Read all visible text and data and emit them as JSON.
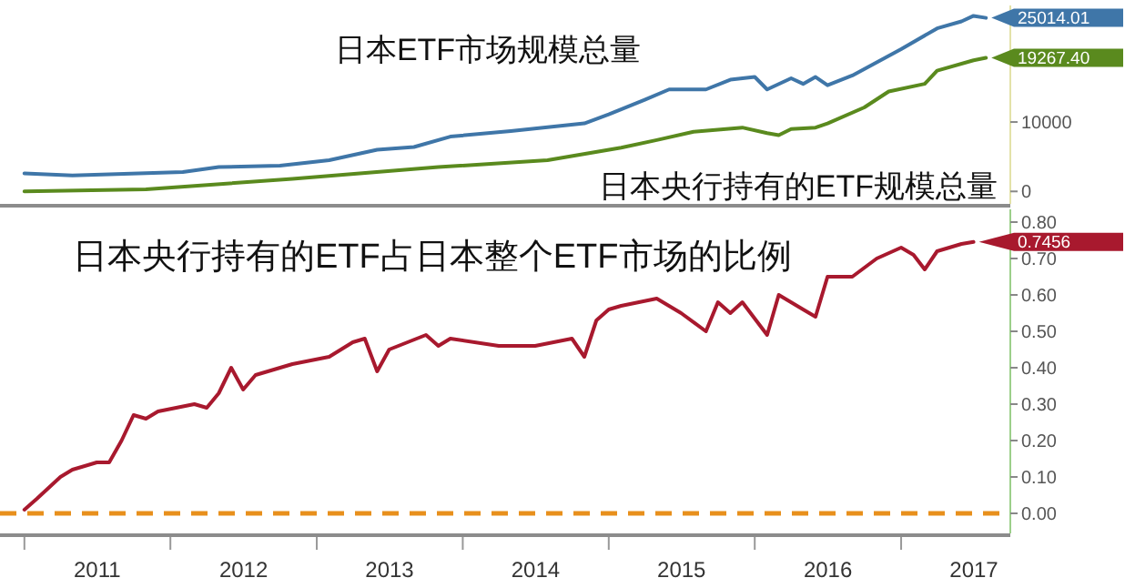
{
  "chart_data": [
    {
      "type": "line",
      "xlim": [
        "2010-11",
        "2017-10"
      ],
      "ylim": [
        -1800,
        26800
      ],
      "yticks": [
        0,
        10000
      ],
      "tick_labels": "y",
      "grid": false,
      "series": [
        {
          "name": "日本ETF市场规模总量",
          "color": "#3f76a8",
          "x": [
            "2011-01",
            "2011-05",
            "2012-02",
            "2012-05",
            "2012-10",
            "2013-02",
            "2013-06",
            "2013-09",
            "2013-12",
            "2014-05",
            "2014-11",
            "2015-01",
            "2015-04",
            "2015-06",
            "2015-09",
            "2015-11",
            "2016-01",
            "2016-02",
            "2016-04",
            "2016-05",
            "2016-06",
            "2016-07",
            "2016-09",
            "2017-01",
            "2017-04",
            "2017-06",
            "2017-07",
            "2017-08"
          ],
          "values": [
            2600,
            2300,
            2800,
            3500,
            3700,
            4500,
            6000,
            6400,
            7900,
            8700,
            9800,
            11100,
            13200,
            14700,
            14700,
            16100,
            16500,
            14700,
            16300,
            15500,
            16500,
            15300,
            16700,
            20500,
            23500,
            24500,
            25300,
            25014.01
          ]
        },
        {
          "name": "日本央行持有的ETF规模总量",
          "color": "#5a8a1e",
          "x": [
            "2011-01",
            "2011-11",
            "2012-11",
            "2013-11",
            "2014-08",
            "2015-02",
            "2015-05",
            "2015-08",
            "2015-12",
            "2016-02",
            "2016-03",
            "2016-04",
            "2016-06",
            "2016-07",
            "2016-10",
            "2016-12",
            "2017-03",
            "2017-04",
            "2017-07",
            "2017-08"
          ],
          "values": [
            0,
            300,
            1800,
            3500,
            4500,
            6300,
            7400,
            8600,
            9200,
            8400,
            8100,
            9000,
            9200,
            9800,
            12100,
            14400,
            15500,
            17400,
            18900,
            19267.4
          ]
        }
      ],
      "annotations": [
        {
          "text": "25014.01",
          "x": "2017-08",
          "y": 25014.01
        },
        {
          "text": "19267.40",
          "x": "2017-08",
          "y": 19267.4
        }
      ]
    },
    {
      "type": "line",
      "title": "日本央行持有的ETF占日本整个ETF市场的比例",
      "xlim": [
        "2010-11",
        "2017-10"
      ],
      "ylim": [
        -0.055,
        0.835
      ],
      "yticks": [
        {
          "value": 0,
          "label": "0.00"
        },
        {
          "value": 0.1,
          "label": "0.10"
        },
        {
          "value": 0.2,
          "label": "0.20"
        },
        {
          "value": 0.3,
          "label": "0.30"
        },
        {
          "value": 0.4,
          "label": "0.40"
        },
        {
          "value": 0.5,
          "label": "0.50"
        },
        {
          "value": 0.6,
          "label": "0.60"
        },
        {
          "value": 0.7,
          "label": "0.70"
        },
        {
          "value": 0.8,
          "label": "0.80"
        }
      ],
      "xticks": [
        {
          "value": "2011-01-01",
          "label": null
        },
        {
          "value": "2011-07-02",
          "label": "2011"
        },
        {
          "value": "2012-01-01",
          "label": null
        },
        {
          "value": "2012-07-02",
          "label": "2012"
        },
        {
          "value": "2013-01-01",
          "label": null
        },
        {
          "value": "2013-07-02",
          "label": "2013"
        },
        {
          "value": "2014-01-01",
          "label": null
        },
        {
          "value": "2014-07-02",
          "label": "2014"
        },
        {
          "value": "2015-01-01",
          "label": null
        },
        {
          "value": "2015-07-02",
          "label": "2015"
        },
        {
          "value": "2016-01-01",
          "label": null
        },
        {
          "value": "2016-07-02",
          "label": "2016"
        },
        {
          "value": "2017-01-01",
          "label": null
        },
        {
          "value": "2017-07-02",
          "label": "2017"
        }
      ],
      "grid": false,
      "series": [
        {
          "color": "#a8192e",
          "x": [
            "2011-01",
            "2011-02",
            "2011-04",
            "2011-05",
            "2011-07",
            "2011-08",
            "2011-09",
            "2011-10",
            "2011-11",
            "2011-12",
            "2012-03",
            "2012-04",
            "2012-05",
            "2012-06",
            "2012-07",
            "2012-08",
            "2012-11",
            "2013-02",
            "2013-04",
            "2013-05",
            "2013-06",
            "2013-07",
            "2013-10",
            "2013-11",
            "2013-12",
            "2014-04",
            "2014-07",
            "2014-10",
            "2014-11",
            "2014-12",
            "2015-01",
            "2015-02",
            "2015-05",
            "2015-07",
            "2015-09",
            "2015-10",
            "2015-11",
            "2015-12",
            "2016-02",
            "2016-03",
            "2016-05",
            "2016-06",
            "2016-07",
            "2016-09",
            "2016-11",
            "2017-01",
            "2017-02",
            "2017-03",
            "2017-04",
            "2017-06",
            "2017-07"
          ],
          "values": [
            0.01,
            0.04,
            0.1,
            0.12,
            0.14,
            0.14,
            0.2,
            0.27,
            0.26,
            0.28,
            0.3,
            0.29,
            0.33,
            0.4,
            0.34,
            0.38,
            0.41,
            0.43,
            0.47,
            0.48,
            0.39,
            0.45,
            0.49,
            0.46,
            0.48,
            0.46,
            0.46,
            0.48,
            0.43,
            0.53,
            0.56,
            0.57,
            0.59,
            0.55,
            0.5,
            0.58,
            0.55,
            0.58,
            0.49,
            0.6,
            0.56,
            0.54,
            0.65,
            0.65,
            0.7,
            0.73,
            0.71,
            0.67,
            0.72,
            0.74,
            0.7456
          ]
        }
      ],
      "ref_lines": [
        {
          "axis": "y",
          "value": 0,
          "color": "#e8901c",
          "line_style": "dashed"
        }
      ],
      "annotations": [
        {
          "text": "0.7456",
          "x": "2017-07",
          "y": 0.7456
        }
      ]
    }
  ]
}
